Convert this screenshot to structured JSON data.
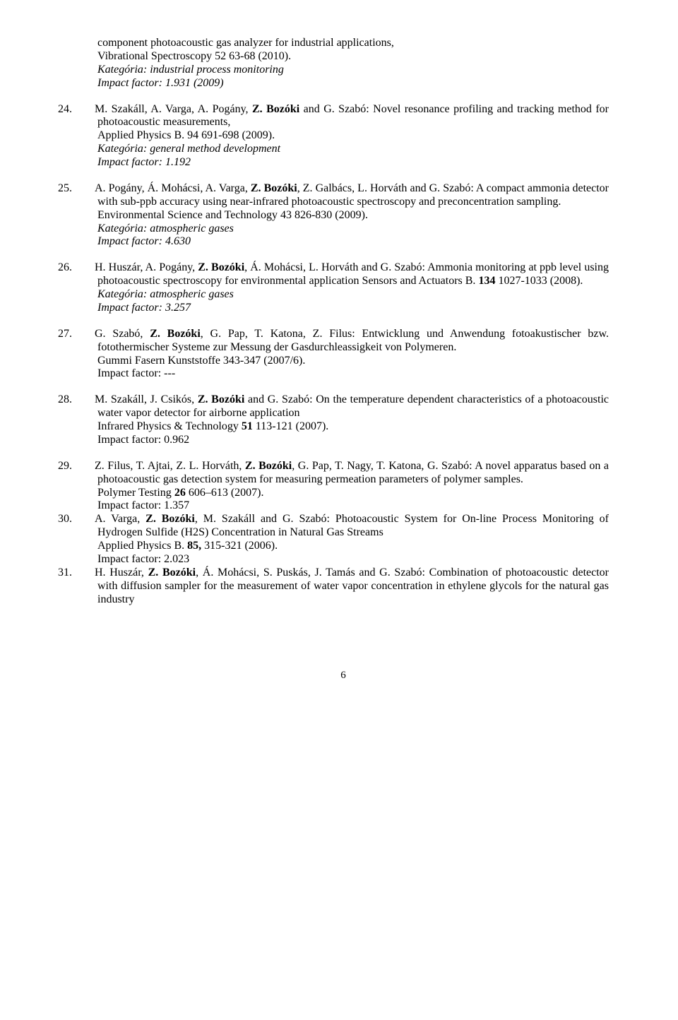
{
  "continuation": {
    "line1": "component photoacoustic gas analyzer for industrial applications,",
    "line2": "Vibrational Spectroscopy 52 63-68 (2010).",
    "category": "Kategória: industrial process monitoring",
    "impact": "Impact factor: 1.931 (2009)"
  },
  "refs": [
    {
      "num": "24.",
      "authors_pre": "M. Szakáll, A. Varga, A. Pogány, ",
      "author_bold": "Z. Bozóki",
      "authors_post": " and G. Szabó: Novel resonance profiling and tracking method for photoacoustic measurements,",
      "pub": "Applied Physics B. 94 691-698 (2009).",
      "category": "Kategória: general method development",
      "impact": "Impact factor: 1.192"
    },
    {
      "num": "25.",
      "authors_pre": "A. Pogány, Á. Mohácsi, A. Varga, ",
      "author_bold": "Z. Bozóki",
      "authors_post": ", Z. Galbács, L. Horváth and G. Szabó: A compact ammonia detector with sub-ppb accuracy using near-infrared photoacoustic spectroscopy and preconcentration sampling.",
      "pub": "Environmental Science and Technology 43 826-830 (2009).",
      "category": "Kategória: atmospheric gases",
      "impact": "Impact factor: 4.630"
    },
    {
      "num": "26.",
      "authors_pre": "H. Huszár, A. Pogány, ",
      "author_bold": "Z. Bozóki",
      "authors_post": ", Á. Mohácsi, L. Horváth and G. Szabó: Ammonia monitoring at ppb level using photoacoustic spectroscopy for environmental application Sensors and Actuators B. ",
      "vol_bold": "134",
      "pub_tail": " 1027-1033 (2008).",
      "category": "Kategória: atmospheric gases",
      "impact": "Impact factor: 3.257"
    },
    {
      "num": "27.",
      "authors_pre": "G. Szabó, ",
      "author_bold": "Z. Bozóki",
      "authors_post": ", G. Pap, T. Katona, Z. Filus: Entwicklung und Anwendung fotoakustischer bzw. fotothermischer Systeme zur Messung der Gasdurchleassigkeit von Polymeren.",
      "pub": "Gummi Fasern Kunststoffe 343-347 (2007/6).",
      "impact": "Impact factor: ---"
    },
    {
      "num": "28.",
      "authors_pre": "M. Szakáll, J. Csikós, ",
      "author_bold": "Z. Bozóki",
      "authors_post": " and G. Szabó: On the temperature dependent characteristics of a photoacoustic water vapor detector for airborne application",
      "pub_pre": "Infrared Physics & Technology ",
      "vol_bold": "51",
      "pub_tail": " 113-121 (2007).",
      "impact": "Impact factor: 0.962"
    },
    {
      "num": "29.",
      "authors_pre": "Z. Filus, T. Ajtai, Z. L. Horváth, ",
      "author_bold": "Z. Bozóki",
      "authors_post": ", G. Pap, T. Nagy, T. Katona, G. Szabó: A novel apparatus based on a photoacoustic gas detection system for measuring permeation parameters of polymer samples.",
      "pub_pre": "Polymer Testing ",
      "vol_bold": "26",
      "pub_tail": " 606–613 (2007).",
      "impact": "Impact factor: 1.357"
    },
    {
      "num": "30.",
      "authors_pre": "A. Varga, ",
      "author_bold": "Z. Bozóki",
      "authors_post": ", M. Szakáll and G. Szabó: Photoacoustic System for On-line Process Monitoring of Hydrogen Sulfide (H2S) Concentration in Natural Gas Streams",
      "pub_pre": "Applied Physics B. ",
      "vol_bold": "85,",
      "pub_tail": " 315-321 (2006).",
      "impact": "Impact factor: 2.023"
    },
    {
      "num": "31.",
      "authors_pre": "H. Huszár, ",
      "author_bold": "Z. Bozóki",
      "authors_post": ", Á. Mohácsi, S. Puskás, J. Tamás and G. Szabó: Combination of photoacoustic detector with diffusion sampler for the measurement of water vapor concentration in ethylene glycols for the natural gas industry"
    }
  ],
  "page_number": "6"
}
